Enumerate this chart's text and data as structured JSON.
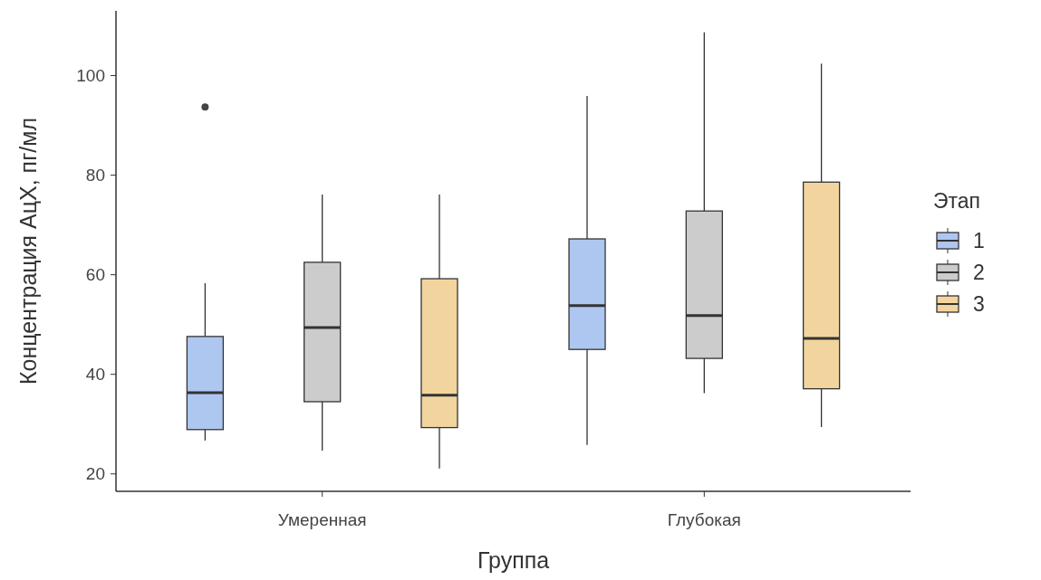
{
  "chart_data": {
    "type": "box",
    "xlabel": "Группа",
    "ylabel": "Концентрация АцХ, пг/мл",
    "legend_title": "Этап",
    "legend": "right",
    "grid": false,
    "categories": [
      "Умеренная",
      "Глубокая"
    ],
    "ylim": [
      16.5,
      113
    ],
    "yticks": [
      20,
      40,
      60,
      80,
      100
    ],
    "series": [
      {
        "name": "1",
        "color": "#aec7f0",
        "boxes": [
          {
            "low": 26.7,
            "q1": 28.9,
            "median": 36.3,
            "q3": 47.6,
            "high": 58.3,
            "outliers": [
              93.7
            ]
          },
          {
            "low": 25.8,
            "q1": 45.0,
            "median": 53.8,
            "q3": 67.2,
            "high": 95.9
          }
        ]
      },
      {
        "name": "2",
        "color": "#cccccc",
        "boxes": [
          {
            "low": 24.7,
            "q1": 34.5,
            "median": 49.4,
            "q3": 62.5,
            "high": 76.1
          },
          {
            "low": 36.2,
            "q1": 43.2,
            "median": 51.8,
            "q3": 72.8,
            "high": 108.7
          }
        ]
      },
      {
        "name": "3",
        "color": "#f2d59e",
        "boxes": [
          {
            "low": 21.1,
            "q1": 29.3,
            "median": 35.8,
            "q3": 59.2,
            "high": 76.1
          },
          {
            "low": 29.4,
            "q1": 37.1,
            "median": 47.2,
            "q3": 78.6,
            "high": 102.4
          }
        ]
      }
    ]
  }
}
